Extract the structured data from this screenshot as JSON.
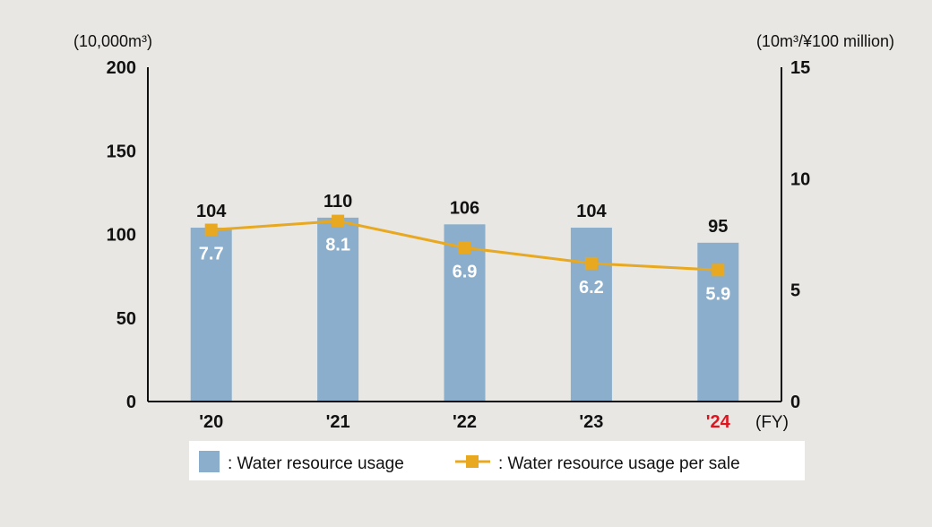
{
  "chart_data": {
    "type": "bar+line",
    "categories": [
      "'20",
      "'21",
      "'22",
      "'23",
      "'24"
    ],
    "highlight_category": "'24",
    "x_unit": "(FY)",
    "left_axis": {
      "unit": "(10,000m³)",
      "ylim": [
        0,
        200
      ],
      "ticks": [
        0,
        50,
        100,
        150,
        200
      ]
    },
    "right_axis": {
      "unit": "(10m³/¥100 million)",
      "ylim": [
        0,
        15
      ],
      "ticks": [
        0,
        5,
        10,
        15
      ]
    },
    "series": [
      {
        "name": "Water resource usage",
        "kind": "bar",
        "axis": "left",
        "values": [
          104,
          110,
          106,
          104,
          95
        ],
        "labels": [
          "104",
          "110",
          "106",
          "104",
          "95"
        ]
      },
      {
        "name": "Water resource usage per sale",
        "kind": "line",
        "axis": "right",
        "values": [
          7.7,
          8.1,
          6.9,
          6.2,
          5.9
        ],
        "labels": [
          "7.7",
          "8.1",
          "6.9",
          "6.2",
          "5.9"
        ]
      }
    ],
    "grid": false,
    "legend": {
      "placement": "bottom",
      "items": [
        ": Water resource usage",
        ": Water resource usage per sale"
      ]
    },
    "colors": {
      "bar": "#8aaecb",
      "line": "#e8a820",
      "highlight": "#e0141e",
      "text": "#111111",
      "background": "#e8e7e3"
    }
  }
}
